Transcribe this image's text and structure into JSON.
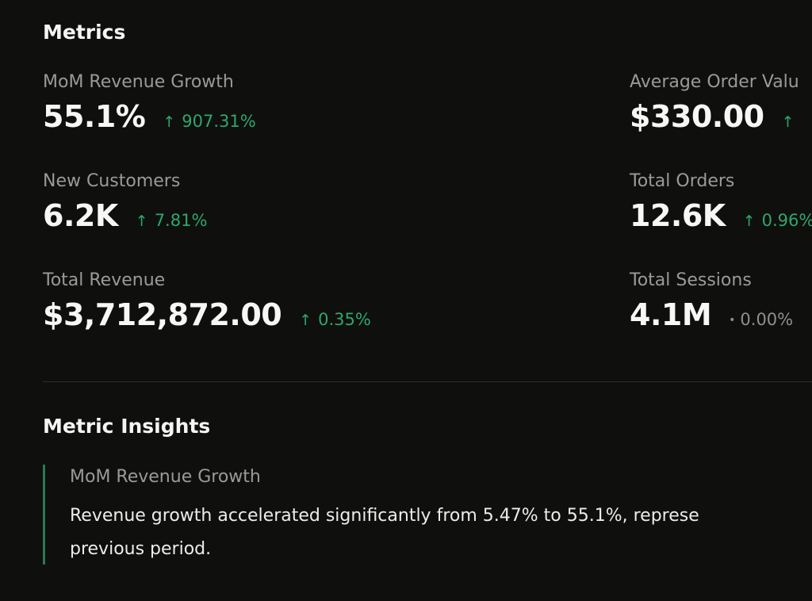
{
  "metrics_section": {
    "title": "Metrics",
    "items": [
      {
        "label": "MoM Revenue Growth",
        "value": "55.1%",
        "change": "907.31%",
        "direction": "up"
      },
      {
        "label": "Average Order Valu",
        "value": "$330.00",
        "change": "",
        "direction": "up"
      },
      {
        "label": "New Customers",
        "value": "6.2K",
        "change": "7.81%",
        "direction": "up"
      },
      {
        "label": "Total Orders",
        "value": "12.6K",
        "change": "0.96%",
        "direction": "up"
      },
      {
        "label": "Total Revenue",
        "value": "$3,712,872.00",
        "change": "0.35%",
        "direction": "up"
      },
      {
        "label": "Total Sessions",
        "value": "4.1M",
        "change": "0.00%",
        "direction": "neutral"
      }
    ]
  },
  "icons": {
    "up": "↑",
    "neutral": "•"
  },
  "colors": {
    "background": "#0f0f0e",
    "positive": "#2ea76b",
    "neutral": "#8f8f8b",
    "insight_accent": "#2b7a50"
  },
  "insights_section": {
    "title": "Metric Insights",
    "items": [
      {
        "title": "MoM Revenue Growth",
        "text_line1": "Revenue growth accelerated significantly from 5.47% to 55.1%, represe",
        "text_line2": "previous period."
      }
    ]
  }
}
